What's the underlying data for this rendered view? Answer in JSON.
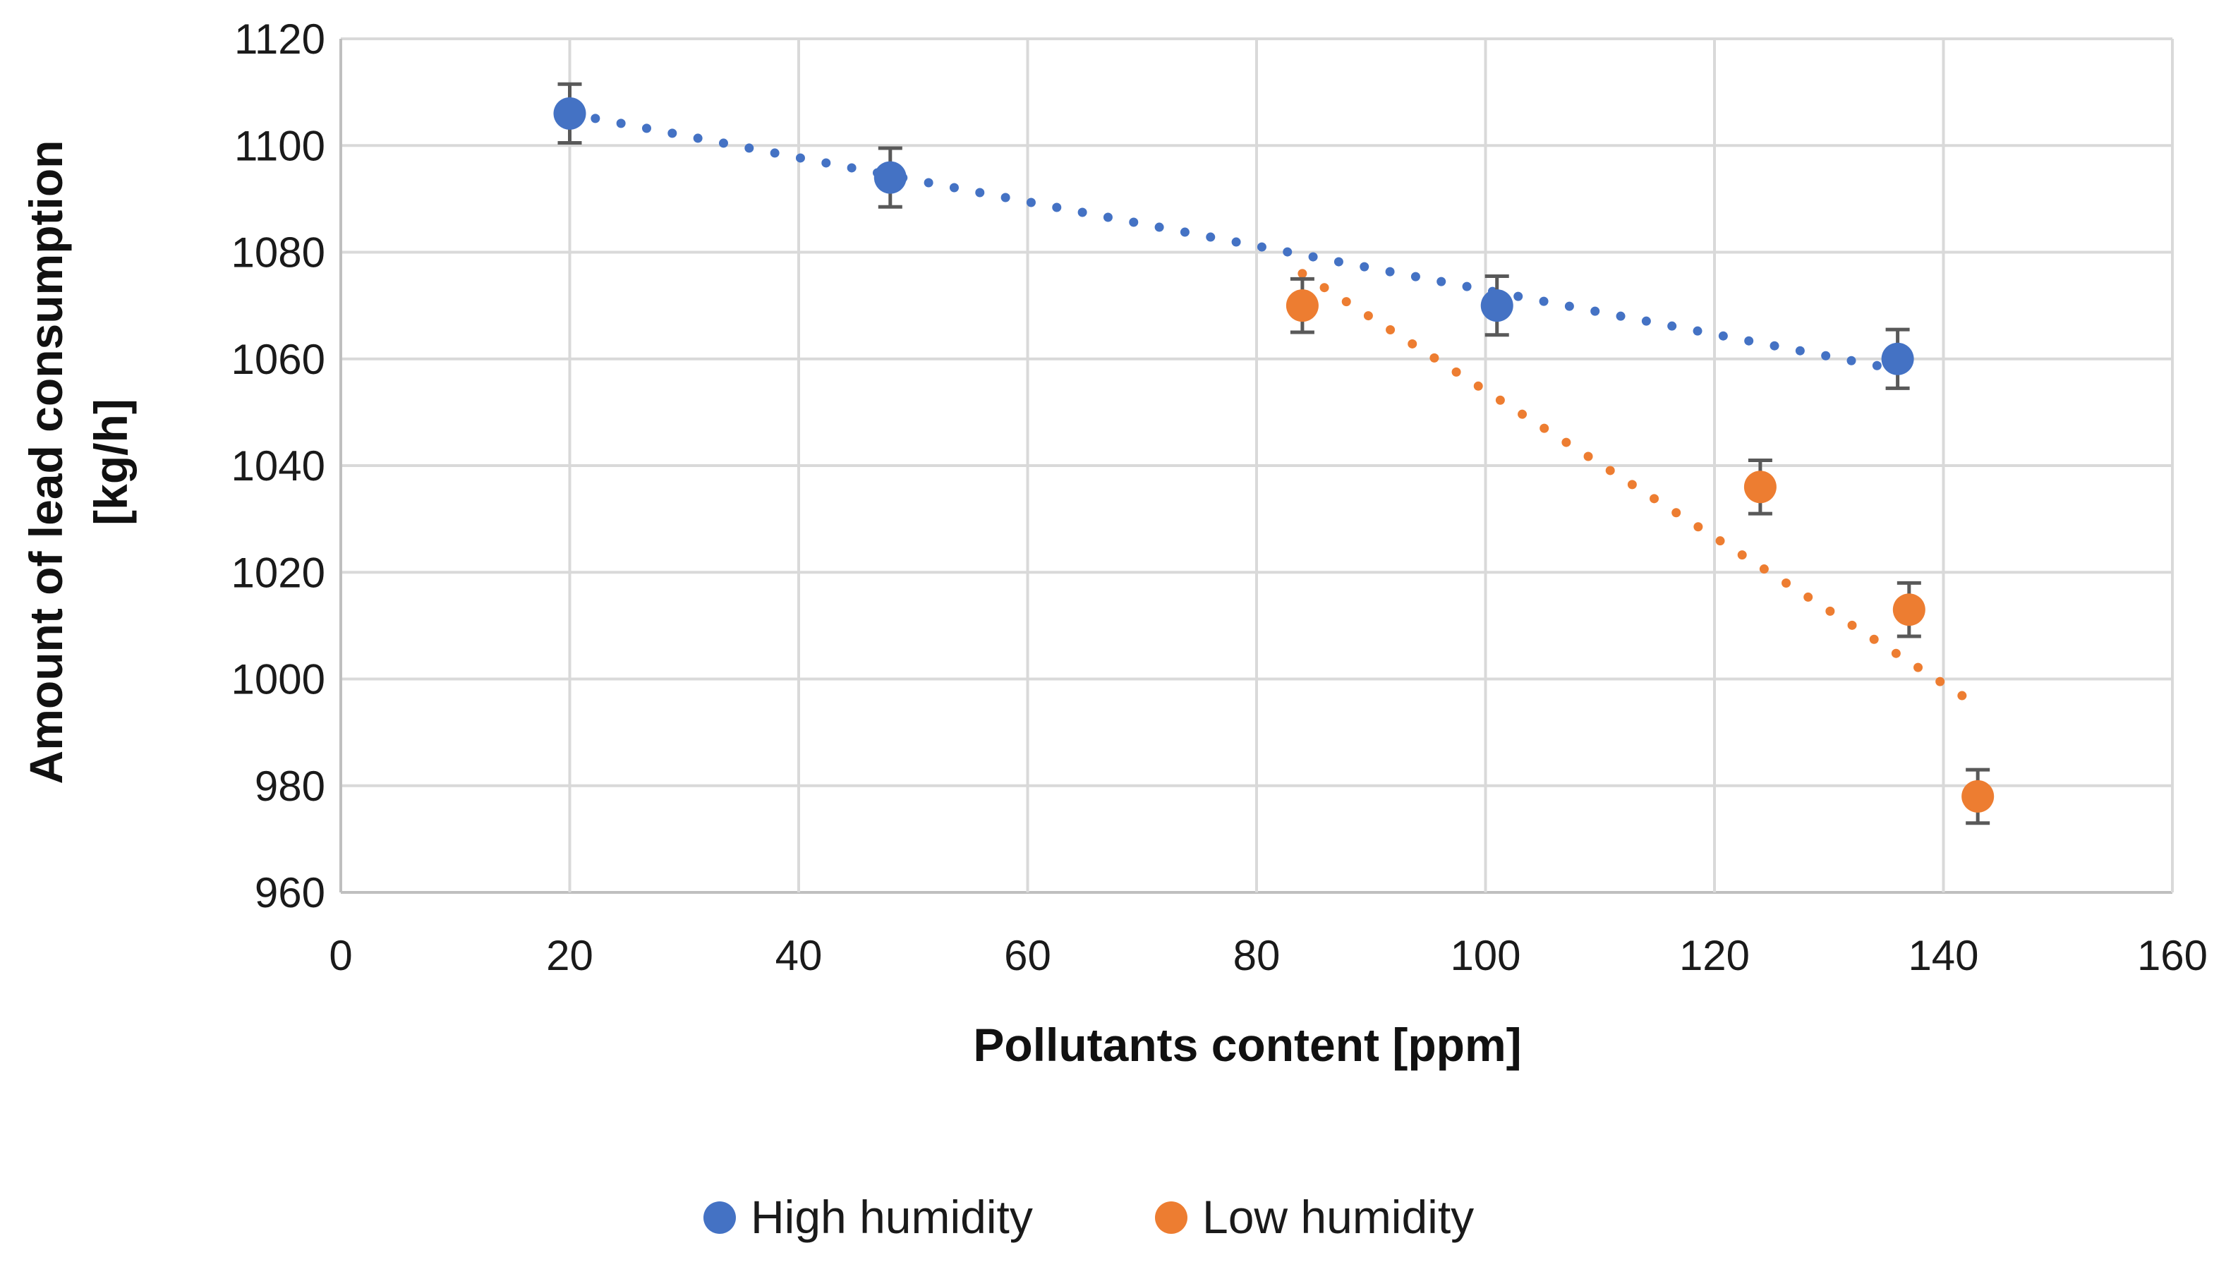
{
  "chart_data": {
    "type": "scatter",
    "title": "",
    "xlabel": "Pollutants content [ppm]",
    "ylabel_lines": [
      "Amount of lead consumption",
      "[kg/h]"
    ],
    "xlim": [
      0,
      160
    ],
    "ylim": [
      960,
      1120
    ],
    "x_ticks": [
      0,
      20,
      40,
      60,
      80,
      100,
      120,
      140,
      160
    ],
    "y_ticks": [
      960,
      980,
      1000,
      1020,
      1040,
      1060,
      1080,
      1100,
      1120
    ],
    "grid": true,
    "legend_position": "bottom-center",
    "series": [
      {
        "name": "High humidity",
        "color": "#4472C4",
        "x": [
          20,
          48,
          101,
          136
        ],
        "y": [
          1106,
          1094,
          1070,
          1060
        ],
        "error": [
          5.5,
          5.5,
          5.5,
          5.5
        ],
        "trendline": {
          "x": [
            20,
            136
          ],
          "y": [
            1106,
            1058
          ]
        }
      },
      {
        "name": "Low humidity",
        "color": "#ED7D31",
        "x": [
          84,
          124,
          137,
          143
        ],
        "y": [
          1070,
          1036,
          1013,
          978
        ],
        "error": [
          5,
          5,
          5,
          5
        ],
        "trendline": {
          "x": [
            84,
            143
          ],
          "y": [
            1076,
            995
          ]
        }
      }
    ]
  }
}
